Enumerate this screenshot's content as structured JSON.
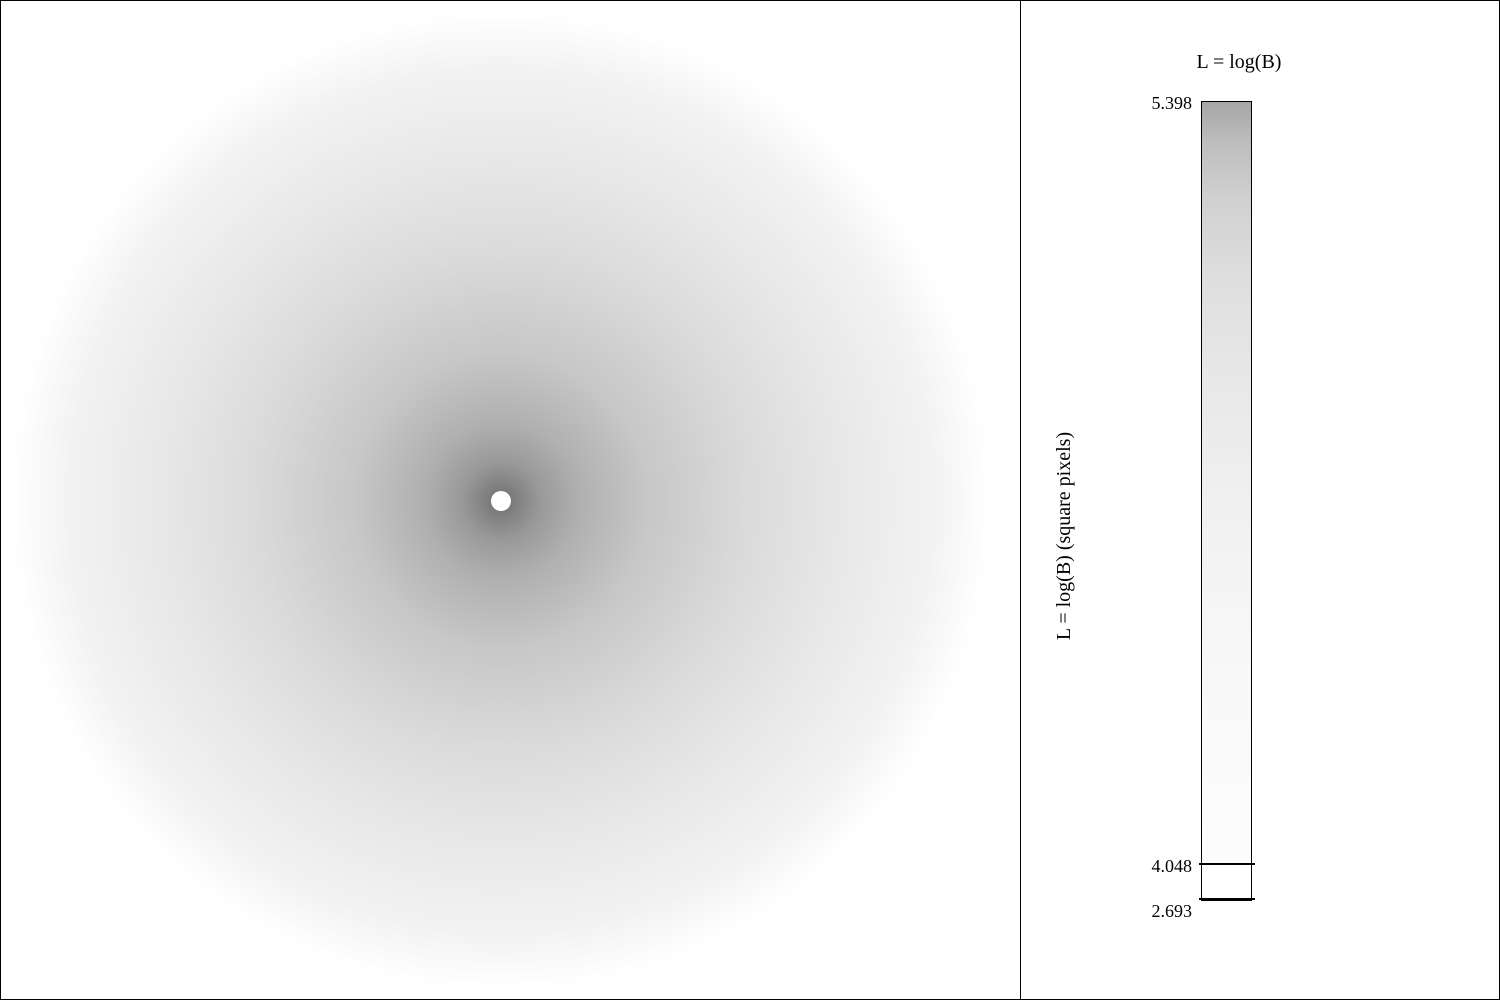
{
  "chart_data": {
    "type": "heatmap",
    "colormap": "grayscale",
    "colors": {
      "high": "#a6a6a6",
      "low": "#ffffff",
      "center_spot": "#ffffff",
      "frame": "#000000"
    },
    "colorbar": {
      "title": "L = log(B)",
      "axis_label": "L = log(B) (square pixels)",
      "max_label": "5.398",
      "mid_label": "4.048",
      "min_label": "2.693",
      "max": 5.398,
      "mid": 4.048,
      "min": 2.693
    }
  }
}
